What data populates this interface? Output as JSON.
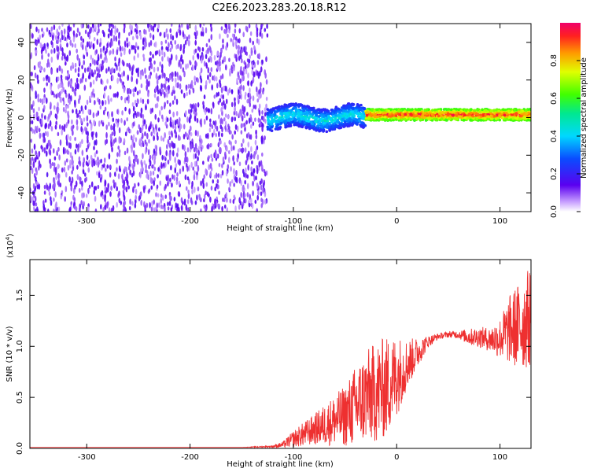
{
  "title": "C2E6.2023.283.20.18.R12",
  "colors": {
    "snr_line": "#ee3030",
    "noise": "#7a2cf0"
  },
  "chart_data": [
    {
      "type": "heatmap",
      "title": "C2E6.2023.283.20.18.R12",
      "xlabel": "Height of straight line (km)",
      "ylabel": "Frequency (Hz)",
      "xlim": [
        -355,
        130
      ],
      "ylim": [
        -50,
        50
      ],
      "xticks": [
        -300,
        -200,
        -100,
        0,
        100
      ],
      "xtick_labels": [
        "-300",
        "-200",
        "-100",
        "0",
        "100"
      ],
      "yticks": [
        -40,
        -20,
        0,
        20,
        40
      ],
      "ytick_labels": [
        "-40",
        "-20",
        "0",
        "20",
        "40"
      ],
      "colorbar": {
        "label": "Normalized spectral amplitude",
        "range": [
          0,
          1
        ],
        "ticks": [
          0.0,
          0.2,
          0.4,
          0.6,
          0.8
        ],
        "tick_labels": [
          "0.0",
          "0.2",
          "0.4",
          "0.6",
          "0.8"
        ],
        "colormap": "rainbow"
      },
      "regions": [
        {
          "x_range": [
            -355,
            -125
          ],
          "description": "broadband noise",
          "amplitude": 0.1
        },
        {
          "x_range": [
            -125,
            -30
          ],
          "frequency_center": 0,
          "frequency_halfwidth": 6,
          "amplitude_range": [
            0.2,
            0.5
          ]
        },
        {
          "x_range": [
            -30,
            130
          ],
          "frequency_center": 1.5,
          "frequency_halfwidth": 3,
          "amplitude_range": [
            0.6,
            1.0
          ]
        }
      ],
      "grid": false
    },
    {
      "type": "line",
      "xlabel": "Height of straight line (km)",
      "ylabel": "SNR (10 * v/v)",
      "y_multiplier": "(x10^4)",
      "y_multiplier_base": "(x10",
      "y_multiplier_exp": "4",
      "y_multiplier_close": ")",
      "xlim": [
        -355,
        130
      ],
      "ylim": [
        0,
        1.85
      ],
      "xticks": [
        -300,
        -200,
        -100,
        0,
        100
      ],
      "xtick_labels": [
        "-300",
        "-200",
        "-100",
        "0",
        "100"
      ],
      "yticks": [
        0.0,
        0.5,
        1.0,
        1.5
      ],
      "ytick_labels": [
        "0.0",
        "0.5",
        "1.0",
        "1.5"
      ],
      "series": [
        {
          "x": [
            -355,
            -300,
            -200,
            -150,
            -120,
            -110,
            -100,
            -90,
            -80,
            -70,
            -60,
            -50,
            -40,
            -30,
            -20,
            -10,
            0,
            10,
            20,
            30,
            40,
            50,
            60,
            70,
            80,
            90,
            100,
            110,
            120,
            130
          ],
          "y": [
            0.01,
            0.01,
            0.01,
            0.01,
            0.02,
            0.04,
            0.1,
            0.15,
            0.2,
            0.25,
            0.3,
            0.35,
            0.45,
            0.55,
            0.6,
            0.65,
            0.75,
            0.85,
            0.95,
            1.05,
            1.1,
            1.12,
            1.12,
            1.1,
            1.1,
            1.08,
            1.1,
            1.2,
            1.25,
            1.35
          ],
          "noise": [
            0,
            0,
            0,
            0,
            0.01,
            0.03,
            0.08,
            0.12,
            0.15,
            0.2,
            0.25,
            0.3,
            0.4,
            0.45,
            0.5,
            0.5,
            0.4,
            0.25,
            0.15,
            0.06,
            0.03,
            0.03,
            0.04,
            0.08,
            0.1,
            0.12,
            0.2,
            0.35,
            0.45,
            0.5
          ]
        }
      ],
      "grid": false
    }
  ]
}
